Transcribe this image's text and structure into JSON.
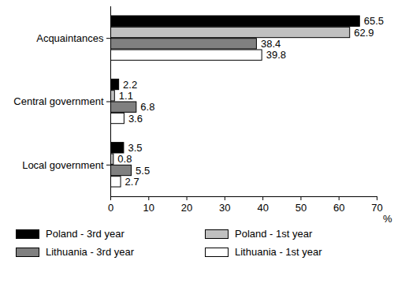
{
  "chart_data": {
    "type": "bar",
    "orientation": "horizontal",
    "categories": [
      "Acquaintances",
      "Central government",
      "Local government"
    ],
    "series": [
      {
        "name": "Poland - 3rd year",
        "color": "#000000",
        "values": [
          65.5,
          2.2,
          3.5
        ]
      },
      {
        "name": "Poland - 1st year",
        "color": "#c0c0c0",
        "values": [
          62.9,
          1.1,
          0.8
        ]
      },
      {
        "name": "Lithuania - 3rd year",
        "color": "#808080",
        "values": [
          38.4,
          6.8,
          5.5
        ]
      },
      {
        "name": "Lithuania - 1st year",
        "color": "#ffffff",
        "values": [
          39.8,
          3.6,
          2.7
        ]
      }
    ],
    "x_label": "%",
    "xlim": [
      0,
      70
    ],
    "xticks": [
      0,
      10,
      20,
      30,
      40,
      50,
      60,
      70
    ],
    "grid": false,
    "data_labels": true,
    "legend": "bottom"
  }
}
